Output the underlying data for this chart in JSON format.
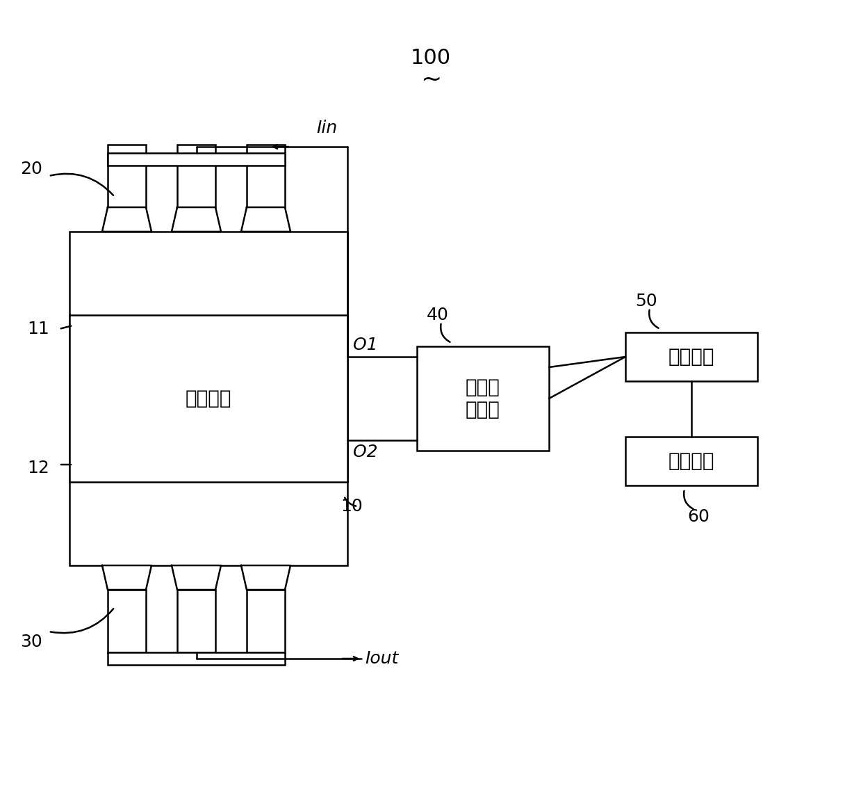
{
  "title": "100",
  "title_tilde": "~",
  "bg_color": "#ffffff",
  "line_color": "#000000",
  "font_size_label": 18,
  "font_size_number": 18,
  "font_size_title": 22,
  "font_size_chinese": 20,
  "labels": {
    "Iin": "Iin",
    "Iout": "Iout",
    "O1": "O1",
    "O2": "O2",
    "num10": "10",
    "num11": "11",
    "num12": "12",
    "num20": "20",
    "num30": "30",
    "num40": "40",
    "num50": "50",
    "num60": "60"
  },
  "chinese_texts": {
    "cell": "单体电池",
    "sample_amp": "采样放\n大电路",
    "control": "控制电路",
    "alarm": "报警电路"
  }
}
